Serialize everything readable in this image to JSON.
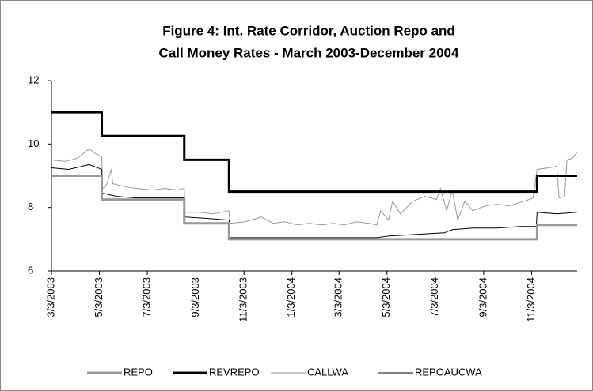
{
  "chart_data": {
    "type": "line",
    "title": [
      "Figure 4: Int. Rate Corridor, Auction Repo and",
      "Call Money Rates - March 2003-December 2004"
    ],
    "xlim": [
      "2003-03-03",
      "2004-12-31"
    ],
    "xticks": [
      {
        "value": "2003-03-03",
        "label": "3/3/2003"
      },
      {
        "value": "2003-05-03",
        "label": "5/3/2003"
      },
      {
        "value": "2003-07-03",
        "label": "7/3/2003"
      },
      {
        "value": "2003-09-03",
        "label": "9/3/2003"
      },
      {
        "value": "2003-11-03",
        "label": "11/3/2003"
      },
      {
        "value": "2004-01-03",
        "label": "1/3/2004"
      },
      {
        "value": "2004-03-03",
        "label": "3/3/2004"
      },
      {
        "value": "2004-05-03",
        "label": "5/3/2004"
      },
      {
        "value": "2004-07-03",
        "label": "7/3/2004"
      },
      {
        "value": "2004-09-03",
        "label": "9/3/2004"
      },
      {
        "value": "2004-11-03",
        "label": "11/3/2004"
      }
    ],
    "ylim": [
      6,
      12
    ],
    "yticks": [
      6,
      8,
      10,
      12
    ],
    "series": [
      {
        "name": "REPO",
        "color": "#999999",
        "width": 3,
        "x": [
          "2003-03-03",
          "2003-05-06",
          "2003-05-06",
          "2003-08-19",
          "2003-08-19",
          "2003-10-15",
          "2003-10-15",
          "2004-11-10",
          "2004-11-10",
          "2004-12-31"
        ],
        "values": [
          9,
          9,
          8.25,
          8.25,
          7.5,
          7.5,
          7,
          7,
          7.45,
          7.45
        ]
      },
      {
        "name": "REVREPO",
        "color": "#000000",
        "width": 3,
        "x": [
          "2003-03-03",
          "2003-05-06",
          "2003-05-06",
          "2003-08-19",
          "2003-08-19",
          "2003-10-15",
          "2003-10-15",
          "2004-11-10",
          "2004-11-10",
          "2004-12-31"
        ],
        "values": [
          11,
          11,
          10.25,
          10.25,
          9.5,
          9.5,
          8.5,
          8.5,
          9,
          9
        ]
      },
      {
        "name": "CALLWA",
        "color": "#999999",
        "width": 1,
        "x": [
          "2003-03-03",
          "2003-03-20",
          "2003-04-05",
          "2003-04-20",
          "2003-04-28",
          "2003-05-06",
          "2003-05-07",
          "2003-05-12",
          "2003-05-18",
          "2003-05-20",
          "2003-06-05",
          "2003-06-20",
          "2003-07-10",
          "2003-07-25",
          "2003-08-10",
          "2003-08-19",
          "2003-08-20",
          "2003-09-05",
          "2003-09-25",
          "2003-10-15",
          "2003-10-16",
          "2003-11-05",
          "2003-11-25",
          "2003-12-10",
          "2003-12-25",
          "2004-01-10",
          "2004-01-25",
          "2004-02-10",
          "2004-02-25",
          "2004-03-10",
          "2004-03-25",
          "2004-04-10",
          "2004-04-20",
          "2004-04-25",
          "2004-05-05",
          "2004-05-10",
          "2004-05-20",
          "2004-06-05",
          "2004-06-20",
          "2004-07-05",
          "2004-07-10",
          "2004-07-18",
          "2004-07-25",
          "2004-08-01",
          "2004-08-10",
          "2004-08-20",
          "2004-09-05",
          "2004-09-20",
          "2004-10-05",
          "2004-10-25",
          "2004-11-05",
          "2004-11-10",
          "2004-11-25",
          "2004-12-05",
          "2004-12-08",
          "2004-12-15",
          "2004-12-18",
          "2004-12-25",
          "2004-12-31"
        ],
        "values": [
          9.5,
          9.45,
          9.55,
          9.85,
          9.7,
          9.6,
          8.6,
          8.7,
          9.2,
          8.75,
          8.65,
          8.6,
          8.55,
          8.6,
          8.55,
          8.6,
          7.85,
          7.85,
          7.8,
          7.9,
          7.5,
          7.55,
          7.7,
          7.5,
          7.55,
          7.45,
          7.5,
          7.45,
          7.5,
          7.45,
          7.55,
          7.5,
          7.45,
          7.9,
          7.6,
          8.2,
          7.8,
          8.2,
          8.35,
          8.25,
          8.6,
          7.9,
          8.55,
          7.6,
          8.2,
          7.9,
          8.05,
          8.1,
          8.05,
          8.2,
          8.3,
          9.2,
          9.25,
          9.3,
          8.3,
          8.35,
          9.5,
          9.55,
          9.75
        ]
      },
      {
        "name": "REPOAUCWA",
        "color": "#000000",
        "width": 1,
        "x": [
          "2003-03-03",
          "2003-03-25",
          "2003-04-20",
          "2003-05-06",
          "2003-05-07",
          "2003-05-25",
          "2003-06-20",
          "2003-07-20",
          "2003-08-19",
          "2003-08-20",
          "2003-09-20",
          "2003-10-15",
          "2003-10-16",
          "2003-11-20",
          "2003-12-20",
          "2004-02-20",
          "2004-04-20",
          "2004-05-05",
          "2004-06-10",
          "2004-07-15",
          "2004-07-25",
          "2004-08-20",
          "2004-09-20",
          "2004-10-20",
          "2004-11-09",
          "2004-11-10",
          "2004-12-05",
          "2004-12-31"
        ],
        "values": [
          9.25,
          9.2,
          9.35,
          9.2,
          8.45,
          8.35,
          8.3,
          8.3,
          8.3,
          7.7,
          7.65,
          7.6,
          7.05,
          7.05,
          7.05,
          7.05,
          7.05,
          7.1,
          7.15,
          7.2,
          7.3,
          7.35,
          7.35,
          7.4,
          7.4,
          7.85,
          7.8,
          7.85
        ]
      }
    ]
  }
}
